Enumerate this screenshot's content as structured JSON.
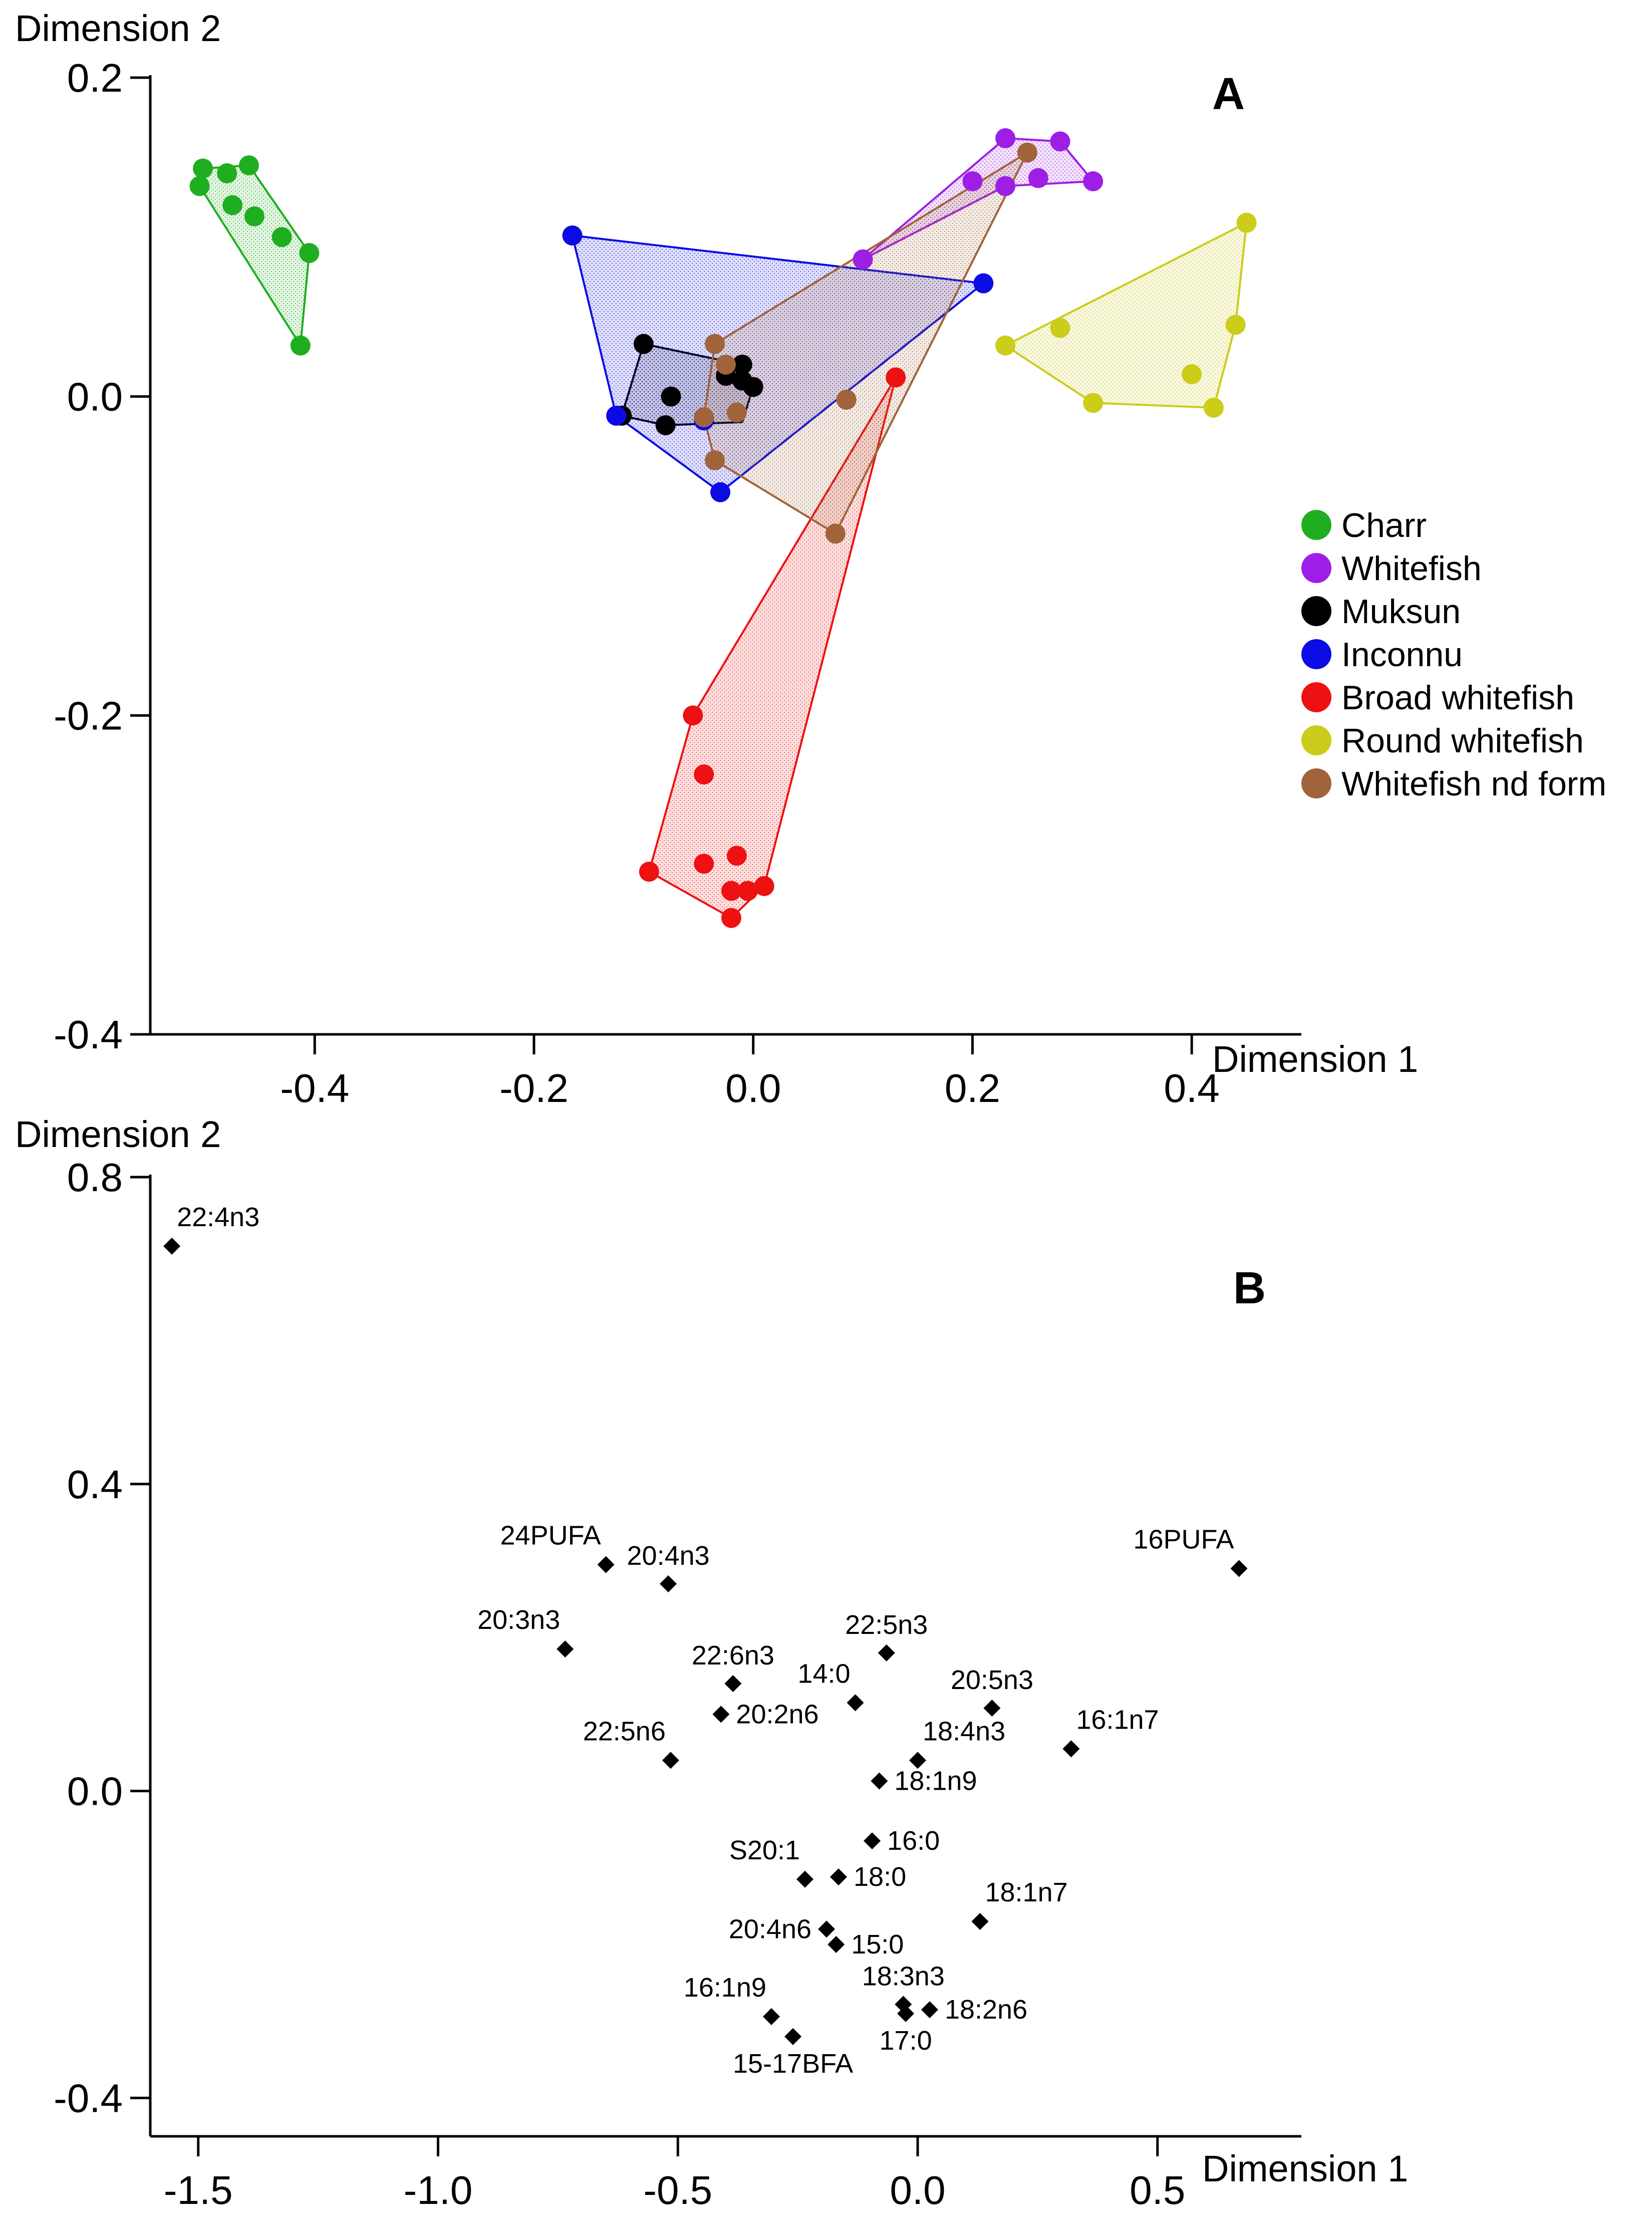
{
  "chart_data": [
    {
      "panel": "A",
      "type": "scatter",
      "xlabel": "Dimension 1",
      "ylabel": "Dimension 2",
      "xlim": [
        -0.55,
        0.5
      ],
      "ylim": [
        -0.4,
        0.2
      ],
      "xticks": [
        -0.4,
        -0.2,
        0.0,
        0.2,
        0.4
      ],
      "xtick_labels": [
        "-0.4",
        "-0.2",
        "0.0",
        "0.2",
        "0.4"
      ],
      "yticks": [
        0.2,
        0.0,
        -0.2,
        -0.4
      ],
      "ytick_labels": [
        "0.2",
        "0.0",
        "-0.2",
        "-0.4"
      ],
      "grid": false,
      "legend_position": "right",
      "series": [
        {
          "name": "Charr",
          "color": "#1fae1f",
          "hull": [
            [
              -0.505,
              0.132
            ],
            [
              -0.502,
              0.143
            ],
            [
              -0.46,
              0.145
            ],
            [
              -0.405,
              0.09
            ],
            [
              -0.413,
              0.032
            ]
          ],
          "points": [
            [
              -0.505,
              0.132
            ],
            [
              -0.502,
              0.143
            ],
            [
              -0.48,
              0.14
            ],
            [
              -0.475,
              0.12
            ],
            [
              -0.46,
              0.145
            ],
            [
              -0.455,
              0.113
            ],
            [
              -0.43,
              0.1
            ],
            [
              -0.405,
              0.09
            ],
            [
              -0.413,
              0.032
            ]
          ]
        },
        {
          "name": "Whitefish",
          "color": "#9d1ee5",
          "hull": [
            [
              0.1,
              0.086
            ],
            [
              0.23,
              0.162
            ],
            [
              0.28,
              0.16
            ],
            [
              0.31,
              0.135
            ],
            [
              0.23,
              0.132
            ]
          ],
          "points": [
            [
              0.1,
              0.086
            ],
            [
              0.23,
              0.162
            ],
            [
              0.28,
              0.16
            ],
            [
              0.31,
              0.135
            ],
            [
              0.23,
              0.132
            ],
            [
              0.2,
              0.135
            ],
            [
              0.26,
              0.137
            ]
          ]
        },
        {
          "name": "Muksun",
          "color": "#000000",
          "hull": [
            [
              -0.12,
              -0.012
            ],
            [
              -0.1,
              0.033
            ],
            [
              -0.01,
              0.02
            ],
            [
              0.0,
              0.006
            ],
            [
              -0.01,
              -0.016
            ],
            [
              -0.08,
              -0.018
            ]
          ],
          "points": [
            [
              -0.12,
              -0.012
            ],
            [
              -0.1,
              0.033
            ],
            [
              -0.01,
              0.02
            ],
            [
              0.0,
              0.006
            ],
            [
              -0.08,
              -0.018
            ],
            [
              -0.075,
              0.0
            ],
            [
              -0.025,
              0.013
            ],
            [
              -0.01,
              0.01
            ]
          ]
        },
        {
          "name": "Inconnu",
          "color": "#0b0be4",
          "hull": [
            [
              -0.165,
              0.101
            ],
            [
              0.21,
              0.071
            ],
            [
              -0.03,
              -0.06
            ],
            [
              -0.125,
              -0.012
            ]
          ],
          "points": [
            [
              -0.165,
              0.101
            ],
            [
              0.21,
              0.071
            ],
            [
              -0.03,
              -0.06
            ],
            [
              -0.125,
              -0.012
            ],
            [
              -0.045,
              -0.015
            ]
          ]
        },
        {
          "name": "Broad whitefish",
          "color": "#ee1111",
          "hull": [
            [
              0.13,
              0.012
            ],
            [
              0.01,
              -0.307
            ],
            [
              -0.02,
              -0.327
            ],
            [
              -0.095,
              -0.298
            ],
            [
              -0.055,
              -0.2
            ]
          ],
          "points": [
            [
              0.13,
              0.012
            ],
            [
              0.01,
              -0.307
            ],
            [
              -0.02,
              -0.327
            ],
            [
              -0.095,
              -0.298
            ],
            [
              -0.055,
              -0.2
            ],
            [
              -0.045,
              -0.237
            ],
            [
              -0.045,
              -0.293
            ],
            [
              -0.015,
              -0.288
            ],
            [
              -0.02,
              -0.31
            ],
            [
              -0.005,
              -0.31
            ]
          ]
        },
        {
          "name": "Round whitefish",
          "color": "#cccc1a",
          "hull": [
            [
              0.23,
              0.032
            ],
            [
              0.45,
              0.109
            ],
            [
              0.44,
              0.045
            ],
            [
              0.42,
              -0.007
            ],
            [
              0.31,
              -0.004
            ]
          ],
          "points": [
            [
              0.23,
              0.032
            ],
            [
              0.45,
              0.109
            ],
            [
              0.44,
              0.045
            ],
            [
              0.42,
              -0.007
            ],
            [
              0.31,
              -0.004
            ],
            [
              0.28,
              0.043
            ],
            [
              0.4,
              0.014
            ]
          ]
        },
        {
          "name": "Whitefish nd form",
          "color": "#a0633a",
          "hull": [
            [
              -0.035,
              0.033
            ],
            [
              0.25,
              0.153
            ],
            [
              0.075,
              -0.086
            ],
            [
              -0.035,
              -0.04
            ],
            [
              -0.045,
              -0.013
            ]
          ],
          "points": [
            [
              -0.035,
              0.033
            ],
            [
              0.25,
              0.153
            ],
            [
              0.075,
              -0.086
            ],
            [
              -0.035,
              -0.04
            ],
            [
              -0.045,
              -0.013
            ],
            [
              -0.015,
              -0.01
            ],
            [
              0.085,
              -0.002
            ],
            [
              -0.025,
              0.02
            ]
          ]
        }
      ]
    },
    {
      "panel": "B",
      "type": "scatter",
      "xlabel": "Dimension 1",
      "ylabel": "Dimension 2",
      "xlim": [
        -1.6,
        0.8
      ],
      "ylim": [
        -0.45,
        0.8
      ],
      "xticks": [
        -1.5,
        -1.0,
        -0.5,
        0.0,
        0.5
      ],
      "xtick_labels": [
        "-1.5",
        "-1.0",
        "-0.5",
        "0.0",
        "0.5"
      ],
      "yticks": [
        0.8,
        0.4,
        0.0,
        -0.4
      ],
      "ytick_labels": [
        "0.8",
        "0.4",
        "0.0",
        "-0.4"
      ],
      "grid": false,
      "points": [
        {
          "label": "22:4n3",
          "x": -1.555,
          "y": 0.71,
          "anchor": "above-right"
        },
        {
          "label": "24PUFA",
          "x": -0.65,
          "y": 0.295,
          "anchor": "above-left"
        },
        {
          "label": "20:4n3",
          "x": -0.52,
          "y": 0.27,
          "anchor": "above"
        },
        {
          "label": "16PUFA",
          "x": 0.67,
          "y": 0.29,
          "anchor": "above-left"
        },
        {
          "label": "20:3n3",
          "x": -0.735,
          "y": 0.185,
          "anchor": "above-left"
        },
        {
          "label": "22:5n3",
          "x": -0.065,
          "y": 0.18,
          "anchor": "above"
        },
        {
          "label": "22:6n3",
          "x": -0.385,
          "y": 0.14,
          "anchor": "above"
        },
        {
          "label": "14:0",
          "x": -0.13,
          "y": 0.115,
          "anchor": "above-left"
        },
        {
          "label": "20:5n3",
          "x": 0.155,
          "y": 0.108,
          "anchor": "above"
        },
        {
          "label": "20:2n6",
          "x": -0.41,
          "y": 0.1,
          "anchor": "right"
        },
        {
          "label": "16:1n7",
          "x": 0.32,
          "y": 0.055,
          "anchor": "above-right"
        },
        {
          "label": "22:5n6",
          "x": -0.515,
          "y": 0.04,
          "anchor": "above-left"
        },
        {
          "label": "18:4n3",
          "x": 0.0,
          "y": 0.04,
          "anchor": "above-right"
        },
        {
          "label": "18:1n9",
          "x": -0.08,
          "y": 0.013,
          "anchor": "right"
        },
        {
          "label": "16:0",
          "x": -0.095,
          "y": -0.065,
          "anchor": "right"
        },
        {
          "label": "S20:1",
          "x": -0.235,
          "y": -0.115,
          "anchor": "above-left"
        },
        {
          "label": "18:0",
          "x": -0.165,
          "y": -0.112,
          "anchor": "right"
        },
        {
          "label": "18:1n7",
          "x": 0.13,
          "y": -0.17,
          "anchor": "above-right"
        },
        {
          "label": "20:4n6",
          "x": -0.19,
          "y": -0.18,
          "anchor": "left"
        },
        {
          "label": "15:0",
          "x": -0.17,
          "y": -0.2,
          "anchor": "right"
        },
        {
          "label": "18:3n3",
          "x": -0.03,
          "y": -0.278,
          "anchor": "above"
        },
        {
          "label": "16:1n9",
          "x": -0.305,
          "y": -0.294,
          "anchor": "above-left"
        },
        {
          "label": "18:2n6",
          "x": 0.025,
          "y": -0.285,
          "anchor": "right"
        },
        {
          "label": "17:0",
          "x": -0.025,
          "y": -0.29,
          "anchor": "below"
        },
        {
          "label": "15-17BFA",
          "x": -0.26,
          "y": -0.32,
          "anchor": "below"
        }
      ]
    }
  ]
}
